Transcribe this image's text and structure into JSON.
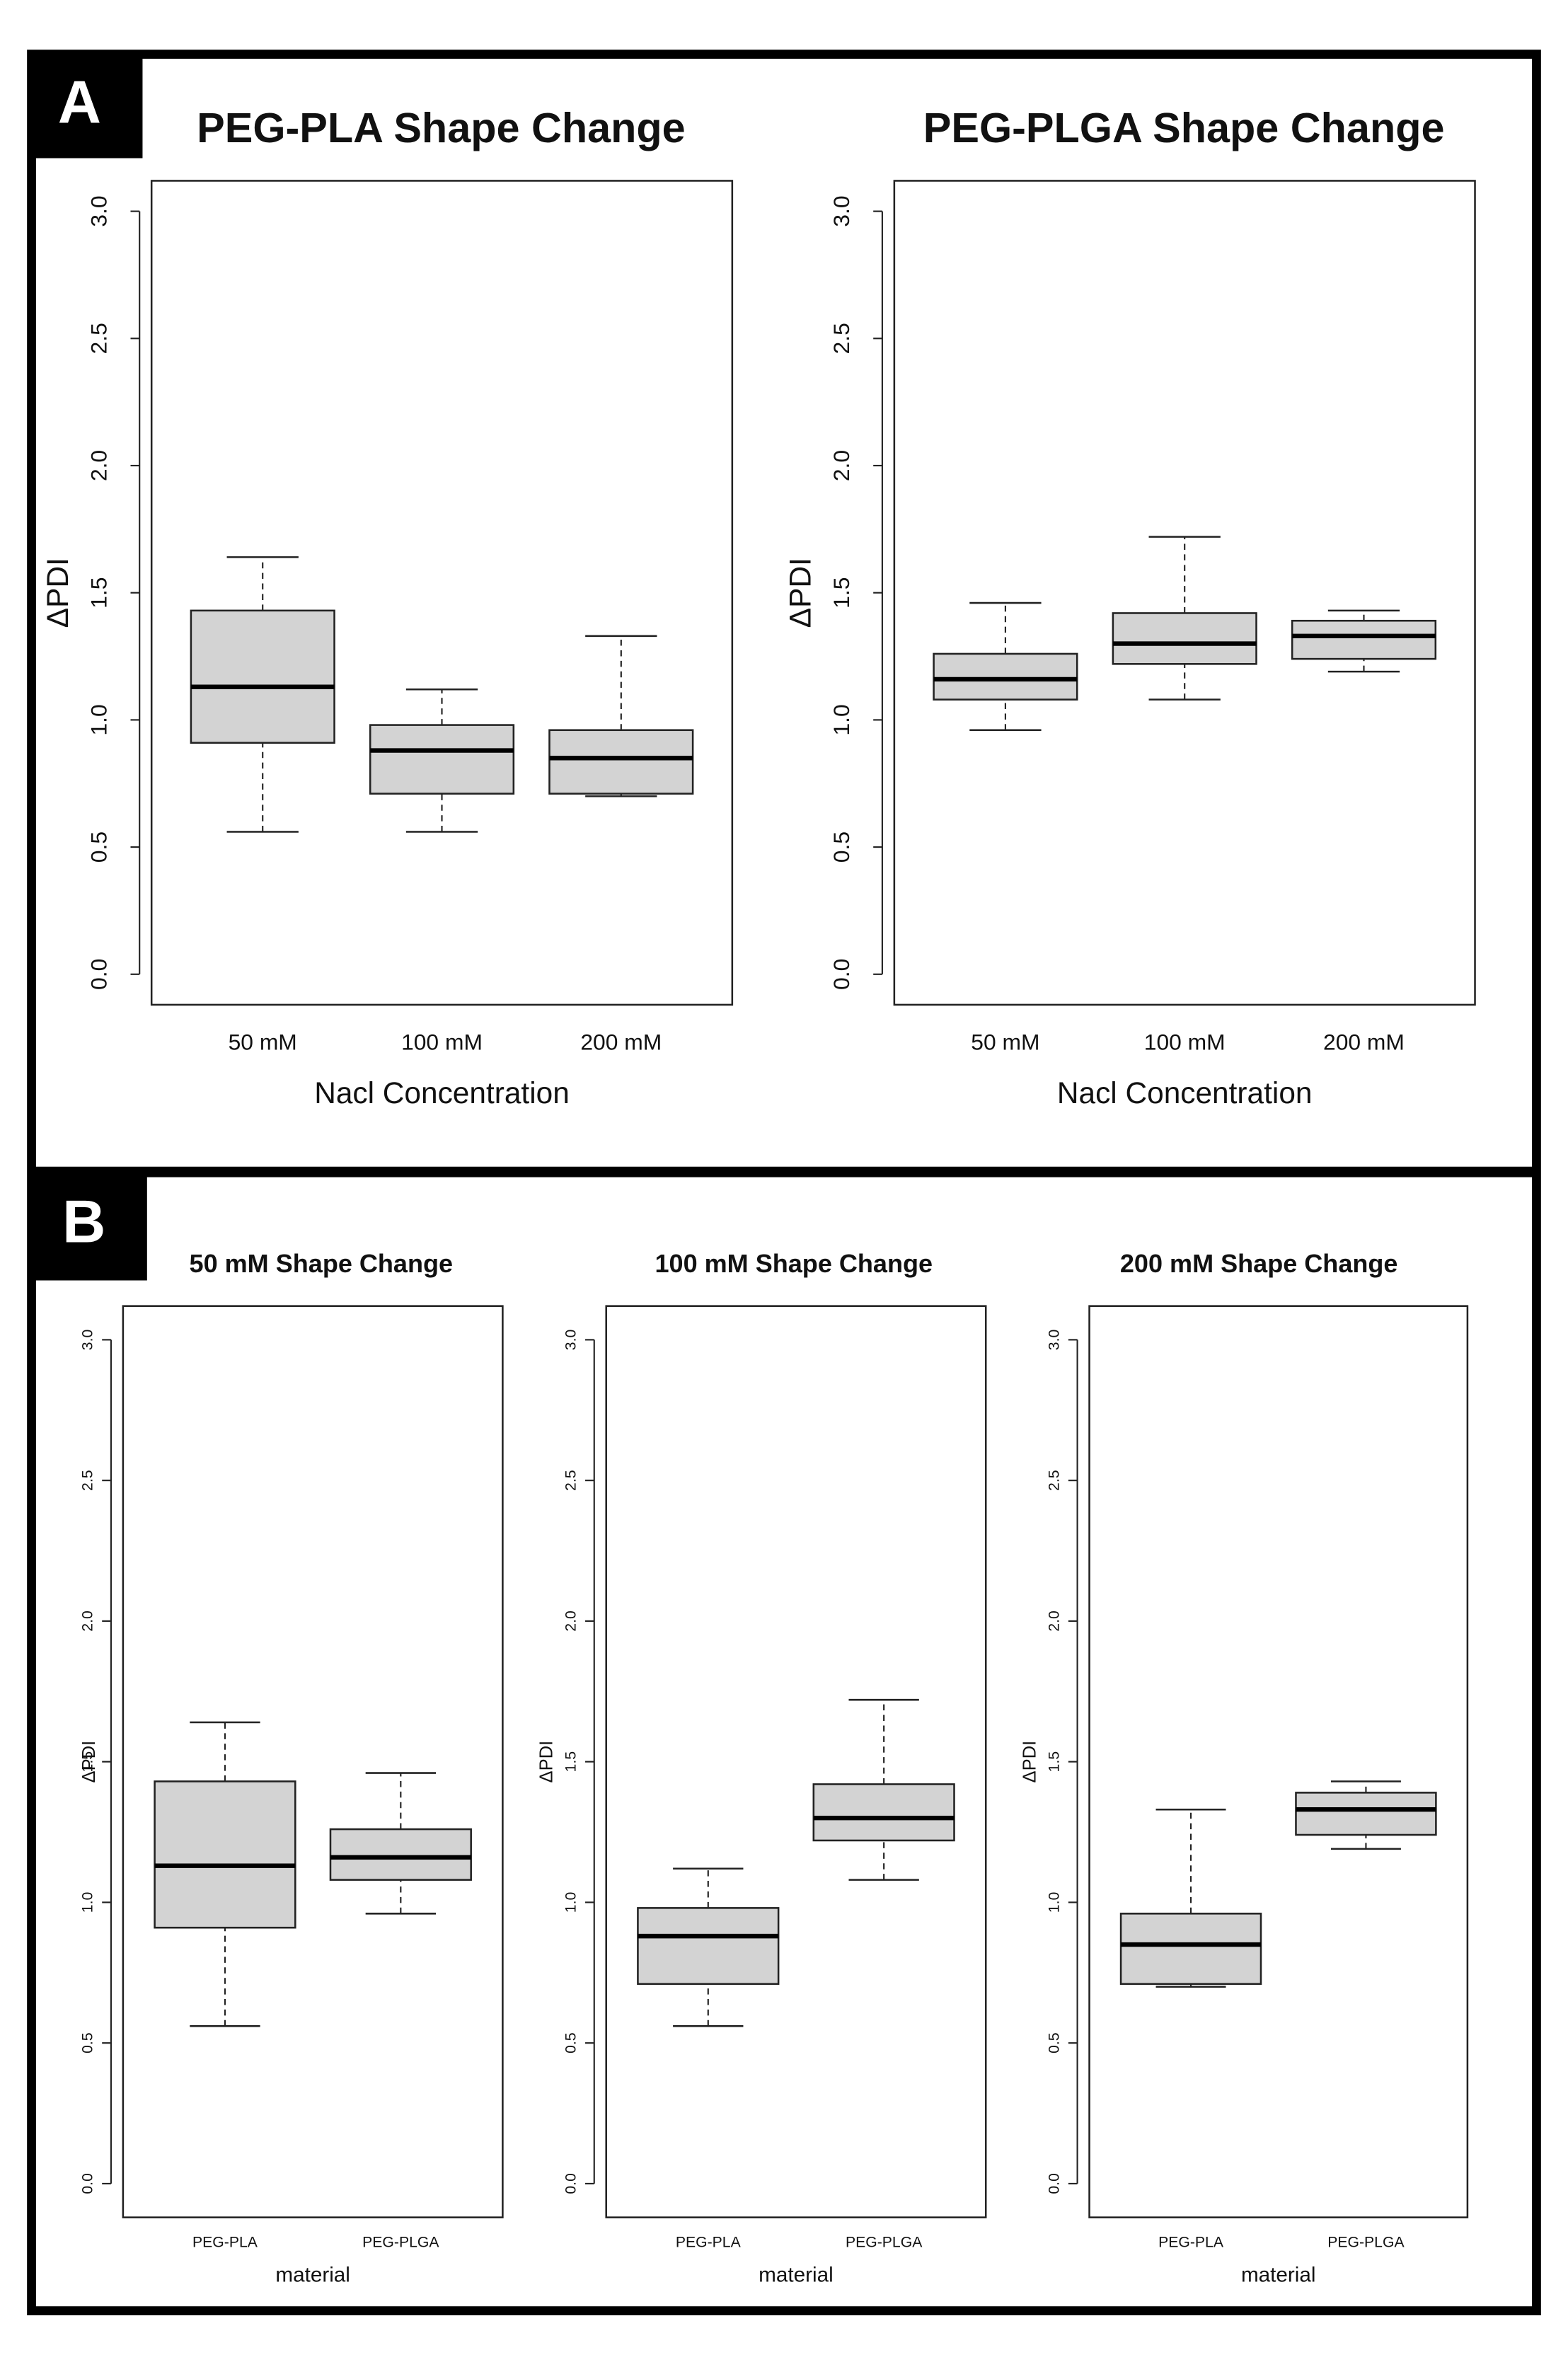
{
  "panel_labels": [
    "A",
    "B"
  ],
  "chart_data": [
    {
      "type": "box",
      "title": "PEG-PLA Shape Change",
      "xlabel": "Nacl Concentration",
      "ylabel": "ΔPDI",
      "categories": [
        "50 mM",
        "100 mM",
        "200 mM"
      ],
      "color": "#d3d3d3",
      "boxes": [
        {
          "min": 0.56,
          "q1": 0.91,
          "median": 1.13,
          "q3": 1.43,
          "max": 1.64
        },
        {
          "min": 0.56,
          "q1": 0.71,
          "median": 0.88,
          "q3": 0.98,
          "max": 1.12
        },
        {
          "min": 0.7,
          "q1": 0.71,
          "median": 0.85,
          "q3": 0.96,
          "max": 1.33
        }
      ],
      "ylim": [
        -0.12,
        3.12
      ],
      "yticks": [
        {
          "value": 0,
          "label": "0.0"
        },
        0.5,
        {
          "value": 1,
          "label": "1.0"
        },
        1.5,
        {
          "value": 2,
          "label": "2.0"
        },
        2.5,
        {
          "value": 3,
          "label": "3.0"
        }
      ]
    },
    {
      "type": "box",
      "title": "PEG-PLGA Shape Change",
      "xlabel": "Nacl Concentration",
      "ylabel": "ΔPDI",
      "categories": [
        "50 mM",
        "100 mM",
        "200 mM"
      ],
      "color": "#d3d3d3",
      "boxes": [
        {
          "min": 0.96,
          "q1": 1.08,
          "median": 1.16,
          "q3": 1.26,
          "max": 1.46
        },
        {
          "min": 1.08,
          "q1": 1.22,
          "median": 1.3,
          "q3": 1.42,
          "max": 1.72
        },
        {
          "min": 1.19,
          "q1": 1.24,
          "median": 1.33,
          "q3": 1.39,
          "max": 1.43
        }
      ],
      "ylim": [
        -0.12,
        3.12
      ],
      "yticks": [
        {
          "value": 0,
          "label": "0.0"
        },
        0.5,
        {
          "value": 1,
          "label": "1.0"
        },
        1.5,
        {
          "value": 2,
          "label": "2.0"
        },
        2.5,
        {
          "value": 3,
          "label": "3.0"
        }
      ]
    },
    {
      "type": "box",
      "title": "50 mM Shape Change",
      "xlabel": "material",
      "ylabel": "ΔPDI",
      "categories": [
        "PEG-PLA",
        "PEG-PLGA"
      ],
      "color": "#d3d3d3",
      "boxes": [
        {
          "min": 0.56,
          "q1": 0.91,
          "median": 1.13,
          "q3": 1.43,
          "max": 1.64
        },
        {
          "min": 0.96,
          "q1": 1.08,
          "median": 1.16,
          "q3": 1.26,
          "max": 1.46
        }
      ],
      "ylim": [
        -0.12,
        3.12
      ],
      "yticks": [
        {
          "value": 0,
          "label": "0.0"
        },
        0.5,
        {
          "value": 1,
          "label": "1.0"
        },
        1.5,
        {
          "value": 2,
          "label": "2.0"
        },
        2.5,
        {
          "value": 3,
          "label": "3.0"
        }
      ]
    },
    {
      "type": "box",
      "title": "100 mM Shape Change",
      "xlabel": "material",
      "ylabel": "ΔPDI",
      "categories": [
        "PEG-PLA",
        "PEG-PLGA"
      ],
      "color": "#d3d3d3",
      "boxes": [
        {
          "min": 0.56,
          "q1": 0.71,
          "median": 0.88,
          "q3": 0.98,
          "max": 1.12
        },
        {
          "min": 1.08,
          "q1": 1.22,
          "median": 1.3,
          "q3": 1.42,
          "max": 1.72
        }
      ],
      "ylim": [
        -0.12,
        3.12
      ],
      "yticks": [
        {
          "value": 0,
          "label": "0.0"
        },
        0.5,
        {
          "value": 1,
          "label": "1.0"
        },
        1.5,
        {
          "value": 2,
          "label": "2.0"
        },
        2.5,
        {
          "value": 3,
          "label": "3.0"
        }
      ]
    },
    {
      "type": "box",
      "title": "200 mM Shape Change",
      "xlabel": "material",
      "ylabel": "ΔPDI",
      "categories": [
        "PEG-PLA",
        "PEG-PLGA"
      ],
      "color": "#d3d3d3",
      "boxes": [
        {
          "min": 0.7,
          "q1": 0.71,
          "median": 0.85,
          "q3": 0.96,
          "max": 1.33
        },
        {
          "min": 1.19,
          "q1": 1.24,
          "median": 1.33,
          "q3": 1.39,
          "max": 1.43
        }
      ],
      "ylim": [
        -0.12,
        3.12
      ],
      "yticks": [
        {
          "value": 0,
          "label": "0.0"
        },
        0.5,
        {
          "value": 1,
          "label": "1.0"
        },
        1.5,
        {
          "value": 2,
          "label": "2.0"
        },
        2.5,
        {
          "value": 3,
          "label": "3.0"
        }
      ]
    }
  ]
}
